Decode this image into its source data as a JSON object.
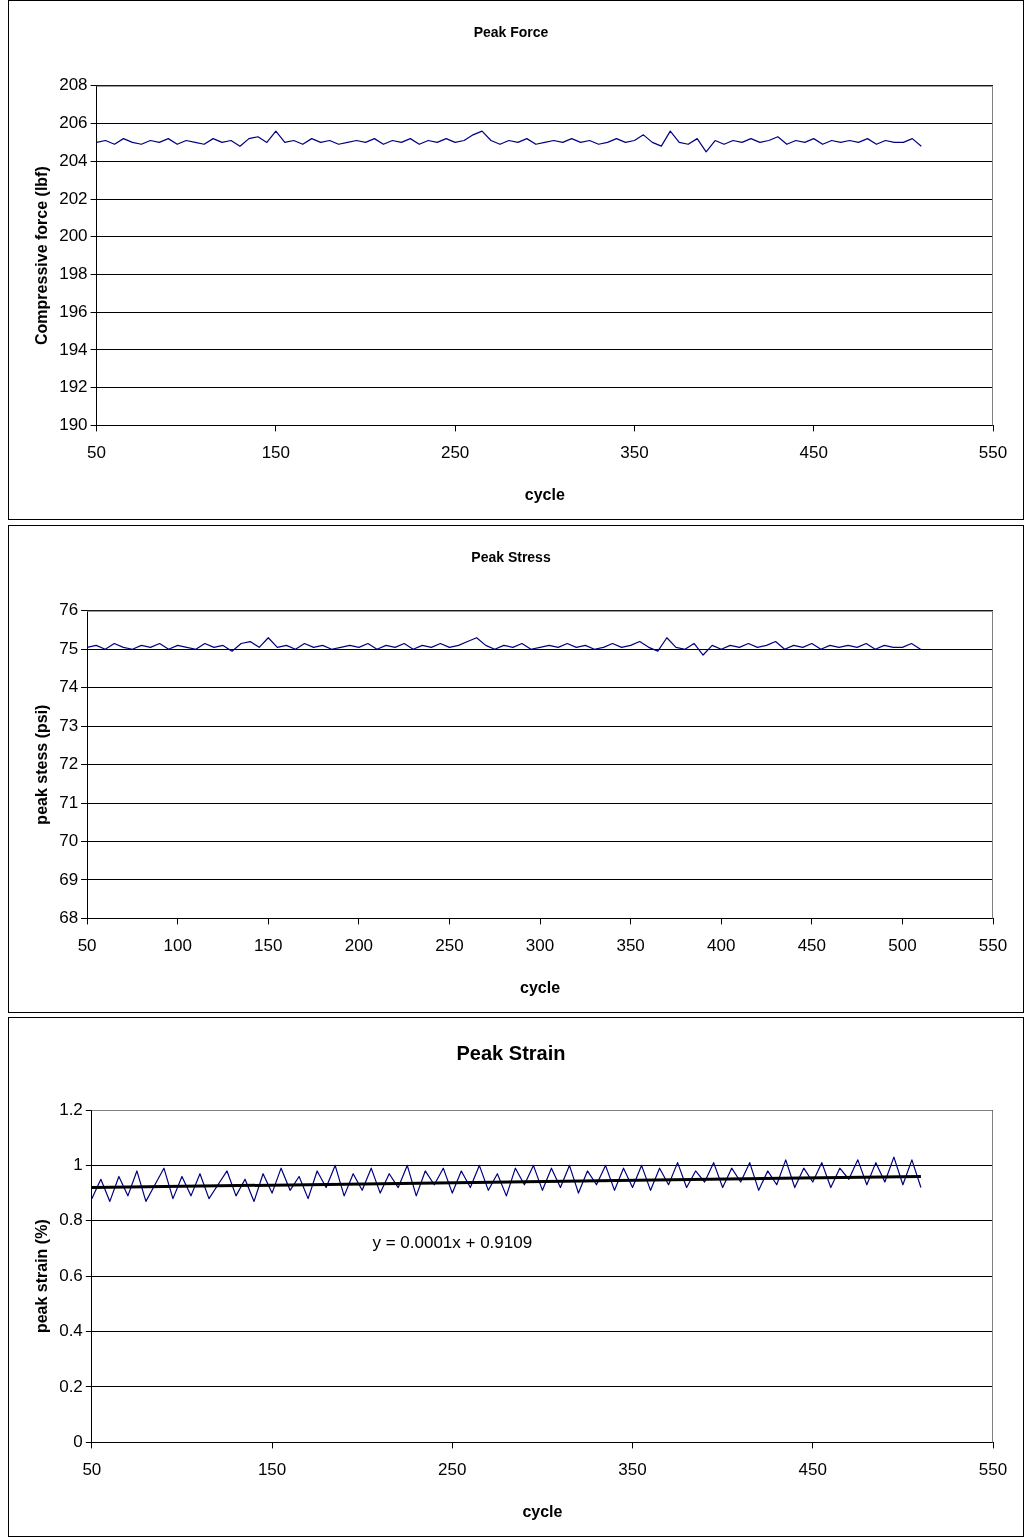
{
  "chart_data": [
    {
      "type": "line",
      "title": "Peak Force",
      "xlabel": "cycle",
      "ylabel": "Compressive force (lbf)",
      "x": [
        50,
        55,
        60,
        65,
        70,
        75,
        80,
        85,
        90,
        95,
        100,
        105,
        110,
        115,
        120,
        125,
        130,
        135,
        140,
        145,
        150,
        155,
        160,
        165,
        170,
        175,
        180,
        185,
        190,
        195,
        200,
        205,
        210,
        215,
        220,
        225,
        230,
        235,
        240,
        245,
        250,
        255,
        260,
        265,
        270,
        275,
        280,
        285,
        290,
        295,
        300,
        305,
        310,
        315,
        320,
        325,
        330,
        335,
        340,
        345,
        350,
        355,
        360,
        365,
        370,
        375,
        380,
        385,
        390,
        395,
        400,
        405,
        410,
        415,
        420,
        425,
        430,
        435,
        440,
        445,
        450,
        455,
        460,
        465,
        470,
        475,
        480,
        485,
        490,
        495,
        500,
        505,
        510
      ],
      "series": [
        {
          "color": "#000080",
          "values": [
            205.0,
            205.1,
            204.9,
            205.2,
            205.0,
            204.9,
            205.1,
            205.0,
            205.2,
            204.9,
            205.1,
            205.0,
            204.9,
            205.2,
            205.0,
            205.1,
            204.8,
            205.2,
            205.3,
            205.0,
            205.6,
            205.0,
            205.1,
            204.9,
            205.2,
            205.0,
            205.1,
            204.9,
            205.0,
            205.1,
            205.0,
            205.2,
            204.9,
            205.1,
            205.0,
            205.2,
            204.9,
            205.1,
            205.0,
            205.2,
            205.0,
            205.1,
            205.4,
            205.6,
            205.1,
            204.9,
            205.1,
            205.0,
            205.2,
            204.9,
            205.0,
            205.1,
            205.0,
            205.2,
            205.0,
            205.1,
            204.9,
            205.0,
            205.2,
            205.0,
            205.1,
            205.4,
            205.0,
            204.8,
            205.6,
            205.0,
            204.9,
            205.2,
            204.5,
            205.1,
            204.9,
            205.1,
            205.0,
            205.2,
            205.0,
            205.1,
            205.3,
            204.9,
            205.1,
            205.0,
            205.2,
            204.9,
            205.1,
            205.0,
            205.1,
            205.0,
            205.2,
            204.9,
            205.1,
            205.0,
            205.0,
            205.2,
            204.8
          ]
        }
      ],
      "xlim": [
        50,
        550
      ],
      "xticks": [
        50,
        150,
        250,
        350,
        450,
        550
      ],
      "ylim": [
        190,
        208
      ],
      "yticks": [
        190,
        192,
        194,
        196,
        198,
        200,
        202,
        204,
        206,
        208
      ],
      "grid": "y"
    },
    {
      "type": "line",
      "title": "Peak Stress",
      "xlabel": "cycle",
      "ylabel": "peak stess (psi)",
      "x": [
        50,
        55,
        60,
        65,
        70,
        75,
        80,
        85,
        90,
        95,
        100,
        105,
        110,
        115,
        120,
        125,
        130,
        135,
        140,
        145,
        150,
        155,
        160,
        165,
        170,
        175,
        180,
        185,
        190,
        195,
        200,
        205,
        210,
        215,
        220,
        225,
        230,
        235,
        240,
        245,
        250,
        255,
        260,
        265,
        270,
        275,
        280,
        285,
        290,
        295,
        300,
        305,
        310,
        315,
        320,
        325,
        330,
        335,
        340,
        345,
        350,
        355,
        360,
        365,
        370,
        375,
        380,
        385,
        390,
        395,
        400,
        405,
        410,
        415,
        420,
        425,
        430,
        435,
        440,
        445,
        450,
        455,
        460,
        465,
        470,
        475,
        480,
        485,
        490,
        495,
        500,
        505,
        510
      ],
      "series": [
        {
          "color": "#000080",
          "values": [
            75.05,
            75.1,
            75.0,
            75.15,
            75.05,
            75.0,
            75.1,
            75.05,
            75.15,
            75.0,
            75.1,
            75.05,
            75.0,
            75.15,
            75.05,
            75.1,
            74.95,
            75.15,
            75.2,
            75.05,
            75.3,
            75.05,
            75.1,
            75.0,
            75.15,
            75.05,
            75.1,
            75.0,
            75.05,
            75.1,
            75.05,
            75.15,
            75.0,
            75.1,
            75.05,
            75.15,
            75.0,
            75.1,
            75.05,
            75.15,
            75.05,
            75.1,
            75.2,
            75.3,
            75.1,
            75.0,
            75.1,
            75.05,
            75.15,
            75.0,
            75.05,
            75.1,
            75.05,
            75.15,
            75.05,
            75.1,
            75.0,
            75.05,
            75.15,
            75.05,
            75.1,
            75.2,
            75.05,
            74.95,
            75.3,
            75.05,
            75.0,
            75.15,
            74.85,
            75.1,
            75.0,
            75.1,
            75.05,
            75.15,
            75.05,
            75.1,
            75.2,
            75.0,
            75.1,
            75.05,
            75.15,
            75.0,
            75.1,
            75.05,
            75.1,
            75.05,
            75.15,
            75.0,
            75.1,
            75.05,
            75.05,
            75.15,
            75.0
          ]
        }
      ],
      "xlim": [
        50,
        550
      ],
      "xticks": [
        50,
        100,
        150,
        200,
        250,
        300,
        350,
        400,
        450,
        500,
        550
      ],
      "ylim": [
        68,
        76
      ],
      "yticks": [
        68,
        69,
        70,
        71,
        72,
        73,
        74,
        75,
        76
      ],
      "grid": "y"
    },
    {
      "type": "line",
      "title": "Peak Strain",
      "xlabel": "cycle",
      "ylabel": "peak strain (%)",
      "x": [
        50,
        55,
        60,
        65,
        70,
        75,
        80,
        85,
        90,
        95,
        100,
        105,
        110,
        115,
        120,
        125,
        130,
        135,
        140,
        145,
        150,
        155,
        160,
        165,
        170,
        175,
        180,
        185,
        190,
        195,
        200,
        205,
        210,
        215,
        220,
        225,
        230,
        235,
        240,
        245,
        250,
        255,
        260,
        265,
        270,
        275,
        280,
        285,
        290,
        295,
        300,
        305,
        310,
        315,
        320,
        325,
        330,
        335,
        340,
        345,
        350,
        355,
        360,
        365,
        370,
        375,
        380,
        385,
        390,
        395,
        400,
        405,
        410,
        415,
        420,
        425,
        430,
        435,
        440,
        445,
        450,
        455,
        460,
        465,
        470,
        475,
        480,
        485,
        490,
        495,
        500,
        505,
        510
      ],
      "series": [
        {
          "color": "#000080",
          "values": [
            0.88,
            0.95,
            0.87,
            0.96,
            0.89,
            0.98,
            0.87,
            0.93,
            0.99,
            0.88,
            0.96,
            0.89,
            0.97,
            0.88,
            0.93,
            0.98,
            0.89,
            0.95,
            0.87,
            0.97,
            0.9,
            0.99,
            0.91,
            0.96,
            0.88,
            0.98,
            0.92,
            1.0,
            0.89,
            0.97,
            0.91,
            0.99,
            0.9,
            0.97,
            0.92,
            1.0,
            0.89,
            0.98,
            0.93,
            0.99,
            0.9,
            0.98,
            0.92,
            1.0,
            0.91,
            0.97,
            0.89,
            0.99,
            0.93,
            1.0,
            0.91,
            0.99,
            0.92,
            1.0,
            0.9,
            0.98,
            0.93,
            1.0,
            0.91,
            0.99,
            0.92,
            1.0,
            0.91,
            0.99,
            0.93,
            1.01,
            0.92,
            0.98,
            0.94,
            1.01,
            0.92,
            0.99,
            0.94,
            1.01,
            0.91,
            0.98,
            0.93,
            1.02,
            0.92,
            0.99,
            0.94,
            1.01,
            0.92,
            0.99,
            0.95,
            1.02,
            0.93,
            1.01,
            0.94,
            1.03,
            0.93,
            1.02,
            0.92
          ]
        },
        {
          "type": "line",
          "color": "#000000",
          "x": [
            50,
            510
          ],
          "values": [
            0.92,
            0.96
          ]
        }
      ],
      "annotations": [
        "y = 0.0001x + 0.9109"
      ],
      "xlim": [
        50,
        550
      ],
      "xticks": [
        50,
        150,
        250,
        350,
        450,
        550
      ],
      "ylim": [
        0,
        1.2
      ],
      "yticks": [
        0,
        0.2,
        0.4,
        0.6,
        0.8,
        1,
        1.2
      ],
      "grid": "y"
    }
  ]
}
